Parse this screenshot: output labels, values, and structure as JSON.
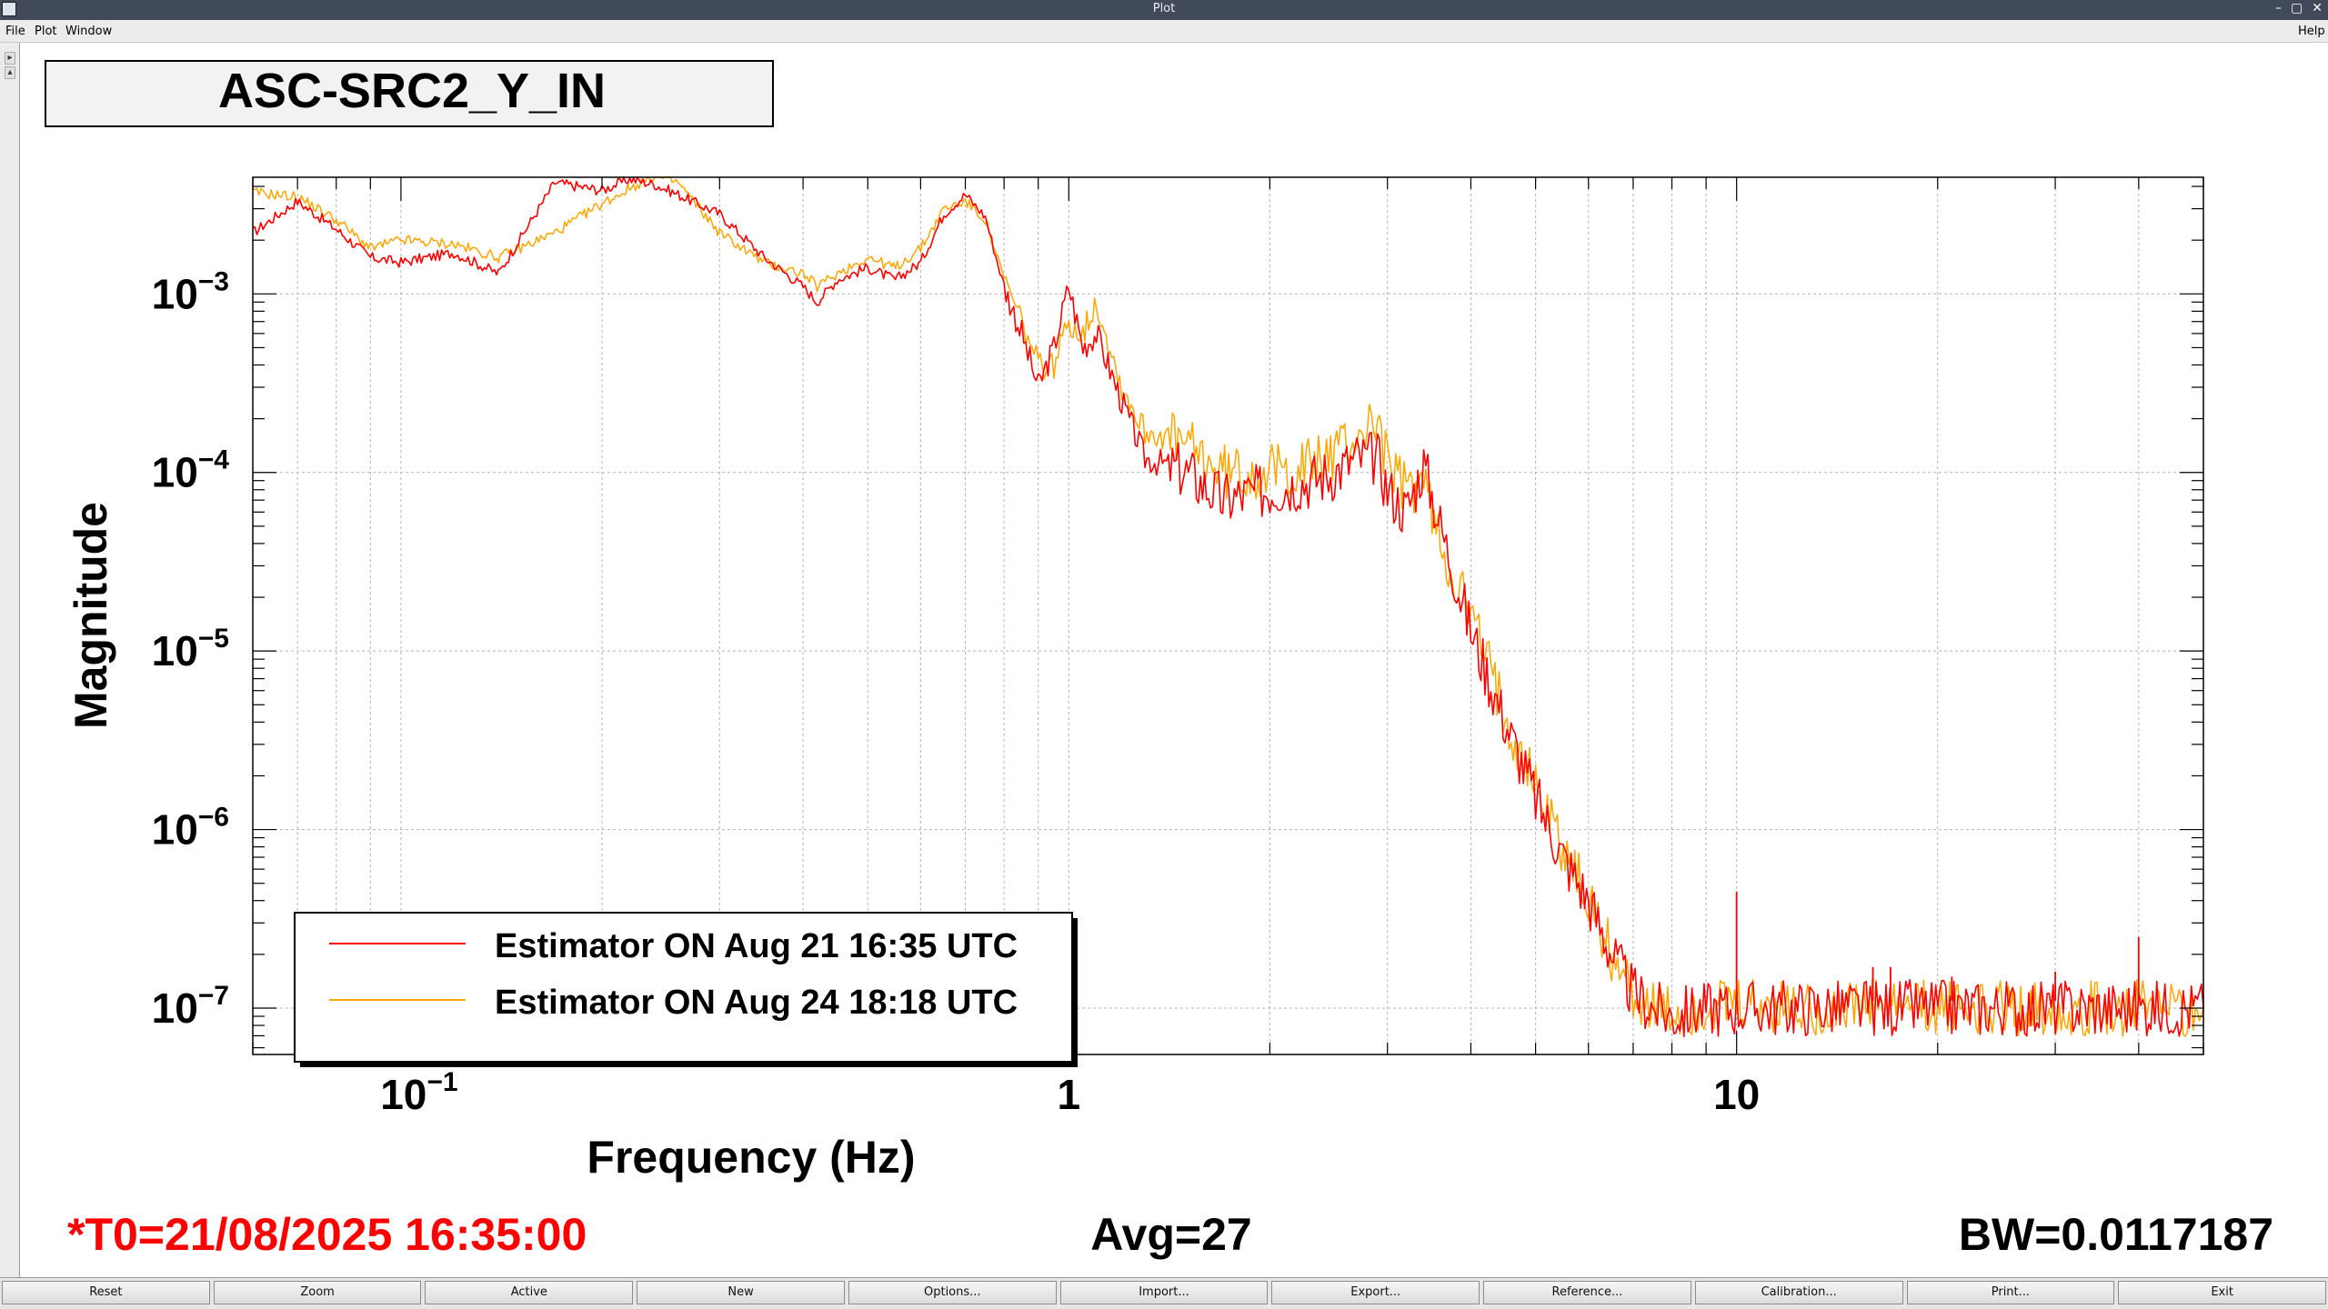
{
  "window": {
    "title": "Plot",
    "controls": [
      "–",
      "▢",
      "✕"
    ]
  },
  "menu": {
    "file": "File",
    "plot": "Plot",
    "window": "Window",
    "help": "Help"
  },
  "plot": {
    "channel_title": "ASC-SRC2_Y_IN",
    "t0": "*T0=21/08/2025 16:35:00",
    "avg": "Avg=27",
    "bw": "BW=0.0117187",
    "t0_color": "#ff0000"
  },
  "buttons": [
    "Reset",
    "Zoom",
    "Active",
    "New",
    "Options...",
    "Import...",
    "Export...",
    "Reference...",
    "Calibration...",
    "Print...",
    "Exit"
  ],
  "chart_data": {
    "type": "line",
    "xlabel": "Frequency (Hz)",
    "ylabel": "Magnitude",
    "xscale": "log",
    "yscale": "log",
    "xlim": [
      0.06,
      50
    ],
    "ylim": [
      5.5e-08,
      0.0045
    ],
    "grid": true,
    "legend_position": "bottom-left",
    "x_ticks": [
      {
        "value": 0.1,
        "base": "10",
        "exp": "−1"
      },
      {
        "value": 1,
        "base": "1",
        "exp": ""
      },
      {
        "value": 10,
        "base": "10",
        "exp": ""
      }
    ],
    "y_ticks": [
      {
        "value": 0.001,
        "base": "10",
        "exp": "−3"
      },
      {
        "value": 0.0001,
        "base": "10",
        "exp": "−4"
      },
      {
        "value": 1e-05,
        "base": "10",
        "exp": "−5"
      },
      {
        "value": 1e-06,
        "base": "10",
        "exp": "−6"
      },
      {
        "value": 1e-07,
        "base": "10",
        "exp": "−7"
      }
    ],
    "series": [
      {
        "name": "Estimator ON Aug 21 16:35 UTC",
        "color": "#ff0000",
        "x": [
          0.06,
          0.07,
          0.08,
          0.09,
          0.1,
          0.12,
          0.14,
          0.17,
          0.2,
          0.22,
          0.24,
          0.26,
          0.3,
          0.35,
          0.4,
          0.42,
          0.45,
          0.5,
          0.55,
          0.6,
          0.65,
          0.7,
          0.75,
          0.8,
          0.85,
          0.9,
          0.95,
          1.0,
          1.05,
          1.1,
          1.2,
          1.3,
          1.4,
          1.5,
          1.7,
          2.0,
          2.3,
          2.5,
          2.7,
          2.9,
          3.0,
          3.2,
          3.4,
          3.6,
          4.0,
          4.5,
          5.0,
          5.5,
          6.0,
          6.5,
          7.0,
          7.5,
          8.0,
          9.0,
          10.0,
          12.0,
          15.0,
          20.0,
          25.0,
          30.0,
          40.0,
          50.0
        ],
        "y": [
          0.0022,
          0.0033,
          0.0023,
          0.0016,
          0.0015,
          0.0017,
          0.0013,
          0.0042,
          0.0038,
          0.0044,
          0.0041,
          0.0036,
          0.0028,
          0.0016,
          0.0011,
          0.0009,
          0.0012,
          0.0014,
          0.0012,
          0.0015,
          0.0028,
          0.0036,
          0.0027,
          0.0011,
          0.0006,
          0.0003,
          0.0005,
          0.0011,
          0.0005,
          0.0006,
          0.00025,
          0.00012,
          0.00011,
          0.0001,
          7e-05,
          8e-05,
          9e-05,
          0.0001,
          0.00012,
          0.00012,
          8e-05,
          6e-05,
          0.00011,
          5e-05,
          1.3e-05,
          4e-06,
          1.5e-06,
          7e-07,
          4e-07,
          2e-07,
          1.2e-07,
          1e-07,
          9e-08,
          1e-07,
          1e-07,
          1e-07,
          1e-07,
          1e-07,
          1e-07,
          1e-07,
          1e-07,
          1e-07
        ]
      },
      {
        "name": "Estimator ON Aug 24 18:18 UTC",
        "color": "#ffa500",
        "x": [
          0.06,
          0.07,
          0.08,
          0.09,
          0.1,
          0.12,
          0.14,
          0.17,
          0.2,
          0.22,
          0.24,
          0.26,
          0.3,
          0.35,
          0.4,
          0.42,
          0.45,
          0.5,
          0.55,
          0.6,
          0.65,
          0.7,
          0.75,
          0.8,
          0.85,
          0.9,
          0.95,
          1.0,
          1.05,
          1.1,
          1.2,
          1.3,
          1.4,
          1.5,
          1.7,
          2.0,
          2.3,
          2.5,
          2.7,
          2.9,
          3.0,
          3.2,
          3.4,
          3.6,
          4.0,
          4.5,
          5.0,
          5.5,
          6.0,
          6.5,
          7.0,
          7.5,
          8.0,
          9.0,
          10.0,
          12.0,
          15.0,
          20.0,
          25.0,
          30.0,
          40.0,
          50.0
        ],
        "y": [
          0.0037,
          0.0035,
          0.0026,
          0.0018,
          0.002,
          0.0019,
          0.0016,
          0.0022,
          0.0032,
          0.0039,
          0.0046,
          0.0042,
          0.0022,
          0.0015,
          0.0013,
          0.0011,
          0.0013,
          0.0016,
          0.0014,
          0.0018,
          0.003,
          0.0033,
          0.0026,
          0.0012,
          0.0007,
          0.0004,
          0.0004,
          0.0007,
          0.0006,
          0.0009,
          0.0003,
          0.00017,
          0.00016,
          0.00014,
          0.0001,
          0.0001,
          0.00011,
          0.00013,
          0.00016,
          0.0002,
          0.00011,
          8e-05,
          9e-05,
          4e-05,
          1.6e-05,
          4.5e-06,
          1.8e-06,
          8e-07,
          4e-07,
          2e-07,
          1.2e-07,
          1e-07,
          9e-08,
          1e-07,
          1e-07,
          1e-07,
          1e-07,
          1e-07,
          1e-07,
          1e-07,
          1e-07,
          1e-07
        ]
      }
    ]
  }
}
